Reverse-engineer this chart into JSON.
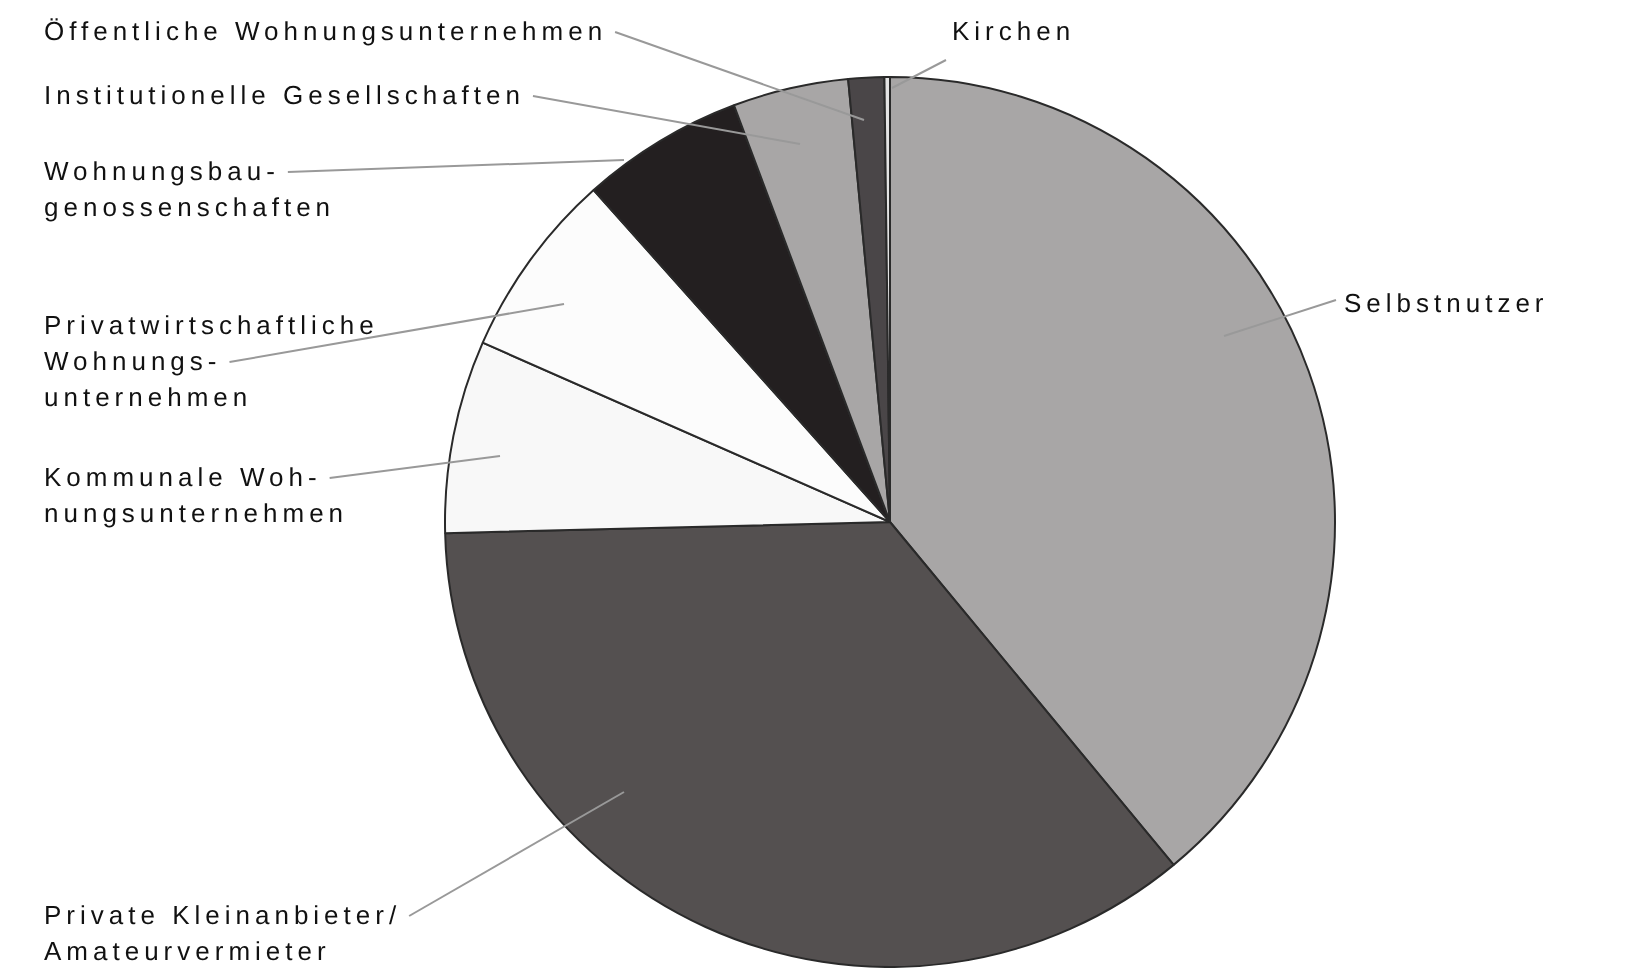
{
  "chart_data": {
    "type": "pie",
    "categories": [
      "Selbstnutzer",
      "Private Kleinanbieter/\nAmateurvermieter",
      "Kommunale Woh-\nnungsunternehmen",
      "Privatwirtschaftliche\nWohnungs-\nunternehmen",
      "Wohnungsbau-\ngenossenschaften",
      "Institutionelle Gesellschaften",
      "Öffentliche Wohnungsunternehmen",
      "Kirchen"
    ],
    "values": [
      39.0,
      35.6,
      7.0,
      6.8,
      5.9,
      4.2,
      1.3,
      0.2
    ],
    "colors": [
      "#a8a6a6",
      "#545050",
      "#f8f8f8",
      "#fcfcfc",
      "#231f20",
      "#a8a6a6",
      "#4a4648",
      "#e4e4e4"
    ],
    "legend": false
  }
}
